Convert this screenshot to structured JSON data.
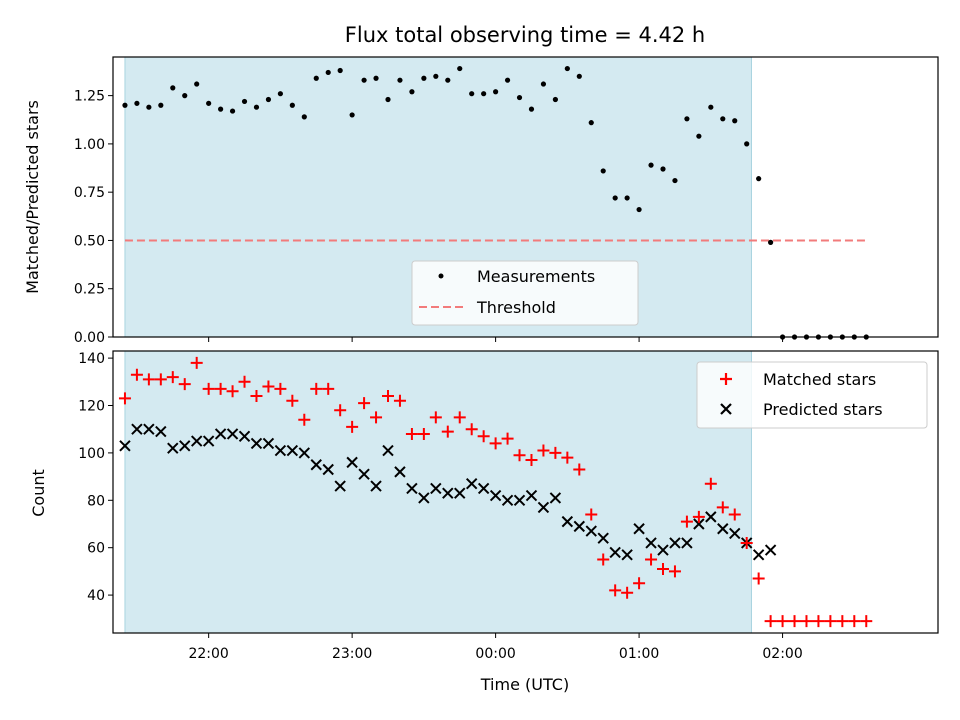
{
  "chart_data": [
    {
      "type": "scatter",
      "title": "Flux total observing time = 4.42 h",
      "ylabel": "Matched/Predicted stars",
      "xlabel": "",
      "xlim": [
        "21:20",
        "03:05"
      ],
      "ylim": [
        0,
        1.45
      ],
      "yticks": [
        "0.00",
        "0.25",
        "0.50",
        "0.75",
        "1.00",
        "1.25"
      ],
      "shaded_span": [
        "21:25",
        "01:47"
      ],
      "threshold": 0.5,
      "legend": [
        "Measurements",
        "Threshold"
      ],
      "legend_position": "lower center",
      "series": [
        {
          "name": "Measurements",
          "x": [
            "21:25",
            "21:30",
            "21:35",
            "21:40",
            "21:45",
            "21:50",
            "21:55",
            "22:00",
            "22:05",
            "22:10",
            "22:15",
            "22:20",
            "22:25",
            "22:30",
            "22:35",
            "22:40",
            "22:45",
            "22:50",
            "22:55",
            "23:00",
            "23:05",
            "23:10",
            "23:15",
            "23:20",
            "23:25",
            "23:30",
            "23:35",
            "23:40",
            "23:45",
            "23:50",
            "23:55",
            "00:00",
            "00:05",
            "00:10",
            "00:15",
            "00:20",
            "00:25",
            "00:30",
            "00:35",
            "00:40",
            "00:45",
            "00:50",
            "00:55",
            "01:00",
            "01:05",
            "01:10",
            "01:15",
            "01:20",
            "01:25",
            "01:30",
            "01:35",
            "01:40",
            "01:45",
            "01:50",
            "01:55",
            "02:00",
            "02:05",
            "02:10",
            "02:15",
            "02:20",
            "02:25",
            "02:30",
            "02:35"
          ],
          "values": [
            1.2,
            1.21,
            1.19,
            1.2,
            1.29,
            1.25,
            1.31,
            1.21,
            1.18,
            1.17,
            1.22,
            1.19,
            1.23,
            1.26,
            1.2,
            1.14,
            1.34,
            1.37,
            1.38,
            1.15,
            1.33,
            1.34,
            1.23,
            1.33,
            1.27,
            1.34,
            1.35,
            1.33,
            1.39,
            1.26,
            1.26,
            1.27,
            1.33,
            1.24,
            1.18,
            1.31,
            1.23,
            1.39,
            1.35,
            1.11,
            0.86,
            0.72,
            0.72,
            0.66,
            0.89,
            0.87,
            0.81,
            1.13,
            1.04,
            1.19,
            1.13,
            1.12,
            1.0,
            0.82,
            0.49,
            0,
            0,
            0,
            0,
            0,
            0,
            0,
            0
          ]
        },
        {
          "name": "Threshold",
          "x": [
            "21:25",
            "02:35"
          ],
          "values": [
            0.5,
            0.5
          ]
        }
      ]
    },
    {
      "type": "scatter",
      "title": "",
      "xlabel": "Time (UTC)",
      "ylabel": "Count",
      "xlim": [
        "21:20",
        "03:05"
      ],
      "ylim": [
        24,
        143
      ],
      "xticks": [
        "22:00",
        "23:00",
        "00:00",
        "01:00",
        "02:00"
      ],
      "yticks": [
        "40",
        "60",
        "80",
        "100",
        "120",
        "140"
      ],
      "shaded_span": [
        "21:25",
        "01:47"
      ],
      "legend": [
        "Matched stars",
        "Predicted stars"
      ],
      "legend_position": "top-right",
      "series": [
        {
          "name": "Matched stars",
          "x": [
            "21:25",
            "21:30",
            "21:35",
            "21:40",
            "21:45",
            "21:50",
            "21:55",
            "22:00",
            "22:05",
            "22:10",
            "22:15",
            "22:20",
            "22:25",
            "22:30",
            "22:35",
            "22:40",
            "22:45",
            "22:50",
            "22:55",
            "23:00",
            "23:05",
            "23:10",
            "23:15",
            "23:20",
            "23:25",
            "23:30",
            "23:35",
            "23:40",
            "23:45",
            "23:50",
            "23:55",
            "00:00",
            "00:05",
            "00:10",
            "00:15",
            "00:20",
            "00:25",
            "00:30",
            "00:35",
            "00:40",
            "00:45",
            "00:50",
            "00:55",
            "01:00",
            "01:05",
            "01:10",
            "01:15",
            "01:20",
            "01:25",
            "01:30",
            "01:35",
            "01:40",
            "01:45",
            "01:50",
            "01:55",
            "02:00",
            "02:05",
            "02:10",
            "02:15",
            "02:20",
            "02:25",
            "02:30",
            "02:35"
          ],
          "values": [
            123,
            133,
            131,
            131,
            132,
            129,
            138,
            127,
            127,
            126,
            130,
            124,
            128,
            127,
            122,
            114,
            127,
            127,
            118,
            111,
            121,
            115,
            124,
            122,
            108,
            108,
            115,
            109,
            115,
            110,
            107,
            104,
            106,
            99,
            97,
            101,
            100,
            98,
            93,
            74,
            55,
            42,
            41,
            45,
            55,
            51,
            50,
            71,
            73,
            87,
            77,
            74,
            62,
            47,
            29,
            29,
            29,
            29,
            29,
            29,
            29,
            29,
            29
          ]
        },
        {
          "name": "Predicted stars",
          "x": [
            "21:25",
            "21:30",
            "21:35",
            "21:40",
            "21:45",
            "21:50",
            "21:55",
            "22:00",
            "22:05",
            "22:10",
            "22:15",
            "22:20",
            "22:25",
            "22:30",
            "22:35",
            "22:40",
            "22:45",
            "22:50",
            "22:55",
            "23:00",
            "23:05",
            "23:10",
            "23:15",
            "23:20",
            "23:25",
            "23:30",
            "23:35",
            "23:40",
            "23:45",
            "23:50",
            "23:55",
            "00:00",
            "00:05",
            "00:10",
            "00:15",
            "00:20",
            "00:25",
            "00:30",
            "00:35",
            "00:40",
            "00:45",
            "00:50",
            "00:55",
            "01:00",
            "01:05",
            "01:10",
            "01:15",
            "01:20",
            "01:25",
            "01:30",
            "01:35",
            "01:40",
            "01:45",
            "01:50",
            "01:55"
          ],
          "values": [
            103,
            110,
            110,
            109,
            102,
            103,
            105,
            105,
            108,
            108,
            107,
            104,
            104,
            101,
            101,
            100,
            95,
            93,
            86,
            96,
            91,
            86,
            101,
            92,
            85,
            81,
            85,
            83,
            83,
            87,
            85,
            82,
            80,
            80,
            82,
            77,
            81,
            71,
            69,
            67,
            64,
            58,
            57,
            68,
            62,
            59,
            62,
            62,
            70,
            73,
            68,
            66,
            62,
            57,
            59
          ]
        }
      ]
    }
  ],
  "colors": {
    "shade": "#d4eaf1",
    "shade_edge": "#a8d4e0",
    "threshold": "#f27b7b",
    "matched": "#ff0000",
    "predicted": "#000000",
    "measurements": "#000000"
  }
}
